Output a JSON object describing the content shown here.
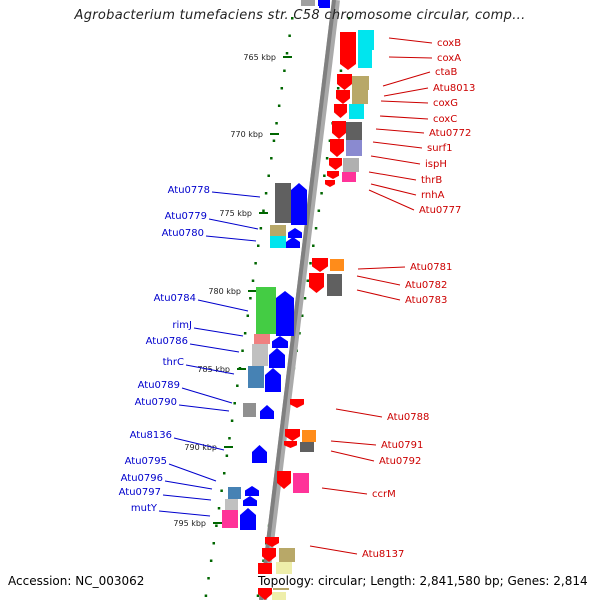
{
  "title": "Agrobacterium tumefaciens str. C58 chromosome circular, comp...",
  "footer": {
    "accession": "Accession: NC_003062",
    "summary": "Topology: circular; Length: 2,841,580 bp; Genes: 2,814"
  },
  "colors": {
    "forward_label": "#0000cc",
    "reverse_label": "#cc0000",
    "forward_arrow": "#0000ff",
    "reverse_arrow": "#ff0000",
    "tick": "#006600",
    "backbone": "#808080"
  },
  "scale_ticks": [
    "765 kbp",
    "770 kbp",
    "775 kbp",
    "780 kbp",
    "785 kbp",
    "790 kbp",
    "795 kbp"
  ],
  "reverse_genes": [
    "coxB",
    "coxA",
    "ctaB",
    "Atu8013",
    "coxG",
    "coxC",
    "Atu0772",
    "surf1",
    "ispH",
    "thrB",
    "rnhA",
    "Atu0777",
    "Atu0781",
    "Atu0782",
    "Atu0783",
    "Atu0788",
    "Atu0791",
    "Atu0792",
    "ccrM",
    "Atu8137"
  ],
  "forward_genes": [
    "Atu0778",
    "Atu0779",
    "Atu0780",
    "Atu0784",
    "rimJ",
    "Atu0786",
    "thrC",
    "Atu0789",
    "Atu0790",
    "Atu8136",
    "Atu0795",
    "Atu0796",
    "Atu0797",
    "mutY"
  ]
}
